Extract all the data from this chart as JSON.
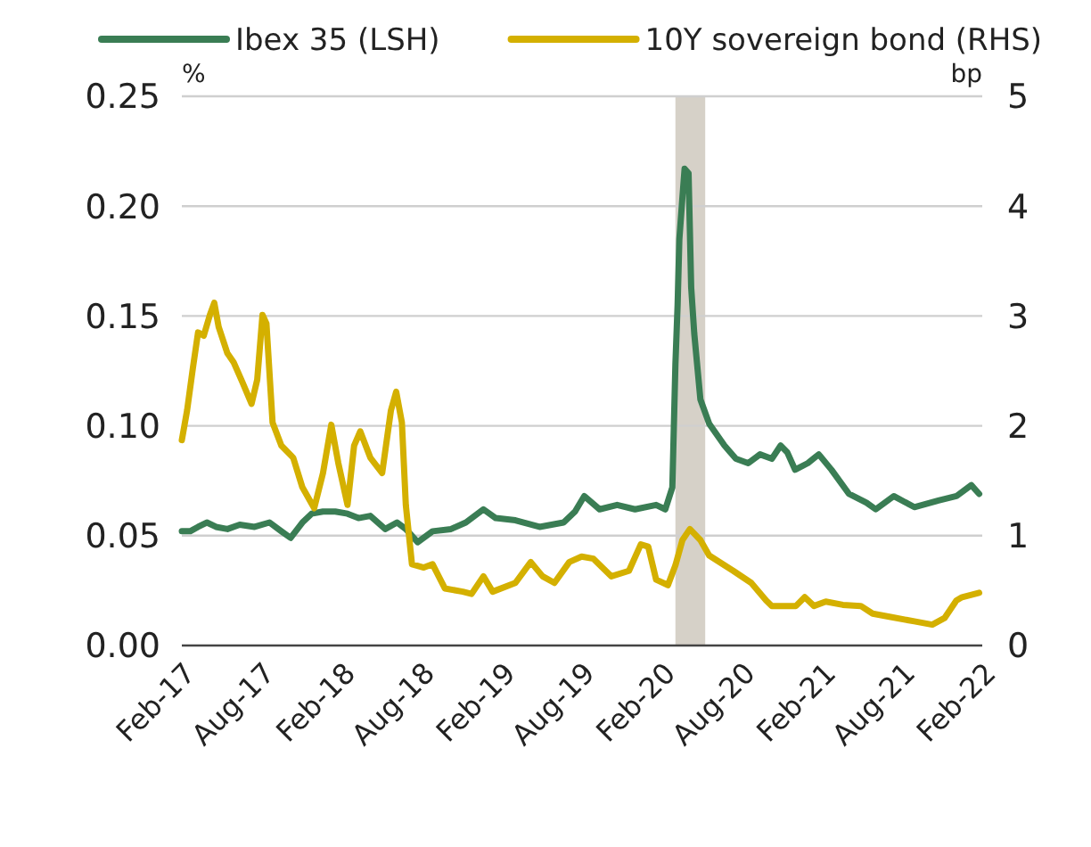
{
  "chart_data": {
    "type": "line",
    "ylabel": "%",
    "y2label": "bp",
    "legend": "top",
    "grid": "y",
    "line_style": "solid",
    "marker": "none",
    "xlim": [
      "2017-02-01",
      "2022-02-01"
    ],
    "xticks": [
      {
        "value": "2017-02-01",
        "label": "Feb-17"
      },
      {
        "value": "2017-08-01",
        "label": "Aug-17"
      },
      {
        "value": "2018-02-01",
        "label": "Feb-18"
      },
      {
        "value": "2018-08-01",
        "label": "Aug-18"
      },
      {
        "value": "2019-02-01",
        "label": "Feb-19"
      },
      {
        "value": "2019-08-01",
        "label": "Aug-19"
      },
      {
        "value": "2020-02-01",
        "label": "Feb-20"
      },
      {
        "value": "2020-08-01",
        "label": "Aug-20"
      },
      {
        "value": "2021-02-01",
        "label": "Feb-21"
      },
      {
        "value": "2021-08-01",
        "label": "Aug-21"
      },
      {
        "value": "2022-02-01",
        "label": "Feb-22"
      }
    ],
    "ylim": [
      0,
      0.25
    ],
    "yticks": [
      {
        "value": 0,
        "label": "0.00"
      },
      {
        "value": 0.05,
        "label": "0.05"
      },
      {
        "value": 0.1,
        "label": "0.10"
      },
      {
        "value": 0.15,
        "label": "0.15"
      },
      {
        "value": 0.2,
        "label": "0.20"
      },
      {
        "value": 0.25,
        "label": "0.25"
      }
    ],
    "y2lim": [
      0,
      5
    ],
    "y2ticks": [
      0,
      1,
      2,
      3,
      4,
      5
    ],
    "bands": [
      {
        "axis": "x",
        "from": "2020-03-03",
        "to": "2020-05-10",
        "color": "#d6d1c8"
      }
    ],
    "series": [
      {
        "name": "Ibex 35 (LSH)",
        "color": "#3a7d54",
        "x": [
          "2017-02-01",
          "2017-02-20",
          "2017-03-10",
          "2017-03-30",
          "2017-04-20",
          "2017-05-16",
          "2017-06-13",
          "2017-07-17",
          "2017-08-20",
          "2017-09-16",
          "2017-10-07",
          "2017-11-03",
          "2017-11-24",
          "2017-12-20",
          "2018-01-17",
          "2018-02-14",
          "2018-03-11",
          "2018-04-07",
          "2018-05-11",
          "2018-06-07",
          "2018-06-27",
          "2018-07-24",
          "2018-08-27",
          "2018-10-08",
          "2018-11-11",
          "2018-12-21",
          "2019-01-18",
          "2019-03-04",
          "2019-04-28",
          "2019-06-22",
          "2019-07-18",
          "2019-08-08",
          "2019-09-12",
          "2019-10-22",
          "2019-12-02",
          "2020-01-19",
          "2020-02-09",
          "2020-02-25",
          "2020-03-03",
          "2020-03-08",
          "2020-03-12",
          "2020-03-19",
          "2020-03-24",
          "2020-04-02",
          "2020-04-08",
          "2020-04-15",
          "2020-04-29",
          "2020-05-19",
          "2020-06-23",
          "2020-07-19",
          "2020-08-16",
          "2020-09-12",
          "2020-10-09",
          "2020-10-29",
          "2020-11-13",
          "2020-12-01",
          "2020-12-30",
          "2021-01-24",
          "2021-02-22",
          "2021-04-03",
          "2021-05-13",
          "2021-06-03",
          "2021-07-14",
          "2021-08-30",
          "2021-10-24",
          "2021-12-04",
          "2022-01-07",
          "2022-01-25"
        ],
        "values": [
          0.052,
          0.052,
          0.054,
          0.056,
          0.054,
          0.053,
          0.055,
          0.054,
          0.056,
          0.052,
          0.049,
          0.056,
          0.06,
          0.061,
          0.061,
          0.06,
          0.058,
          0.059,
          0.053,
          0.056,
          0.053,
          0.047,
          0.052,
          0.053,
          0.056,
          0.062,
          0.058,
          0.057,
          0.054,
          0.056,
          0.061,
          0.068,
          0.062,
          0.064,
          0.062,
          0.064,
          0.062,
          0.072,
          0.128,
          0.155,
          0.185,
          0.204,
          0.217,
          0.215,
          0.163,
          0.142,
          0.112,
          0.101,
          0.091,
          0.085,
          0.083,
          0.087,
          0.085,
          0.091,
          0.088,
          0.08,
          0.083,
          0.087,
          0.08,
          0.069,
          0.065,
          0.062,
          0.068,
          0.063,
          0.066,
          0.068,
          0.073,
          0.069
        ]
      },
      {
        "name": "10Y sovereign bond (RHS)",
        "color": "#d4b000",
        "axis": "y2",
        "x": [
          "2017-02-01",
          "2017-02-13",
          "2017-02-26",
          "2017-03-10",
          "2017-03-23",
          "2017-04-06",
          "2017-04-16",
          "2017-04-26",
          "2017-05-16",
          "2017-05-30",
          "2017-06-20",
          "2017-07-10",
          "2017-07-23",
          "2017-08-04",
          "2017-08-13",
          "2017-08-27",
          "2017-09-16",
          "2017-10-13",
          "2017-11-03",
          "2017-11-30",
          "2017-12-20",
          "2018-01-08",
          "2018-01-24",
          "2018-02-14",
          "2018-03-01",
          "2018-03-15",
          "2018-04-07",
          "2018-05-04",
          "2018-05-24",
          "2018-06-05",
          "2018-06-18",
          "2018-06-27",
          "2018-07-11",
          "2018-08-07",
          "2018-08-27",
          "2018-09-24",
          "2018-11-04",
          "2018-11-24",
          "2018-12-21",
          "2019-01-11",
          "2019-03-04",
          "2019-04-08",
          "2019-05-05",
          "2019-06-01",
          "2019-07-05",
          "2019-08-02",
          "2019-08-29",
          "2019-10-09",
          "2019-11-18",
          "2019-12-15",
          "2020-01-01",
          "2020-01-19",
          "2020-02-15",
          "2020-03-03",
          "2020-03-19",
          "2020-04-05",
          "2020-04-29",
          "2020-05-19",
          "2020-06-23",
          "2020-07-13",
          "2020-08-23",
          "2020-09-26",
          "2020-10-09",
          "2020-12-03",
          "2020-12-23",
          "2021-01-13",
          "2021-02-09",
          "2021-03-20",
          "2021-04-30",
          "2021-05-27",
          "2021-07-07",
          "2021-08-30",
          "2021-10-10",
          "2021-11-07",
          "2021-12-04",
          "2021-12-17",
          "2022-01-25"
        ],
        "values": [
          1.87,
          2.14,
          2.52,
          2.85,
          2.82,
          3.01,
          3.12,
          2.9,
          2.66,
          2.58,
          2.39,
          2.2,
          2.42,
          3.01,
          2.93,
          2.03,
          1.82,
          1.71,
          1.44,
          1.25,
          1.57,
          2.01,
          1.66,
          1.28,
          1.82,
          1.95,
          1.71,
          1.57,
          2.14,
          2.31,
          2.03,
          1.28,
          0.74,
          0.71,
          0.74,
          0.52,
          0.49,
          0.47,
          0.63,
          0.49,
          0.57,
          0.76,
          0.63,
          0.57,
          0.76,
          0.81,
          0.79,
          0.63,
          0.68,
          0.92,
          0.9,
          0.6,
          0.55,
          0.73,
          0.96,
          1.06,
          0.96,
          0.82,
          0.73,
          0.68,
          0.57,
          0.41,
          0.36,
          0.36,
          0.44,
          0.36,
          0.4,
          0.37,
          0.36,
          0.29,
          0.26,
          0.22,
          0.19,
          0.25,
          0.41,
          0.44,
          0.48
        ]
      }
    ]
  }
}
